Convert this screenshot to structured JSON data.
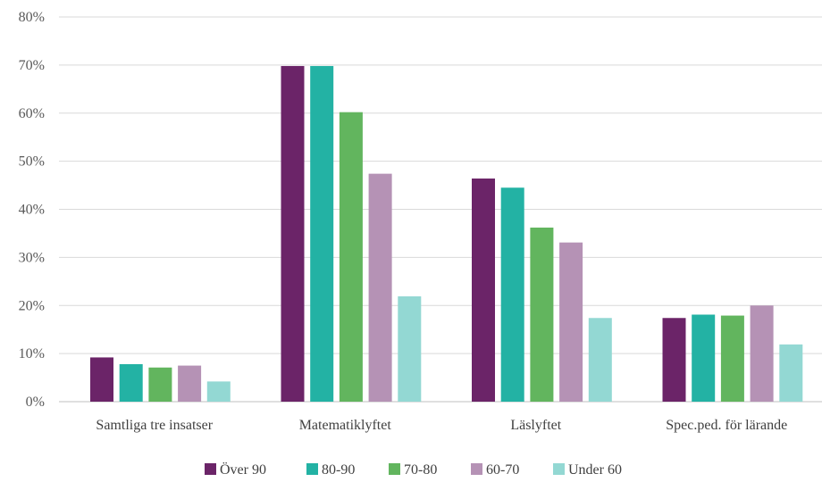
{
  "chart_data": {
    "type": "bar",
    "title": "",
    "xlabel": "",
    "ylabel": "",
    "ylim": [
      0,
      0.8
    ],
    "ytick_step": 0.1,
    "ytick_labels": [
      "0%",
      "10%",
      "20%",
      "30%",
      "40%",
      "50%",
      "60%",
      "70%",
      "80%"
    ],
    "grid": true,
    "legend_position": "bottom",
    "categories": [
      "Samtliga tre insatser",
      "Matematiklyftet",
      "Läslyftet",
      "Spec.ped. för lärande"
    ],
    "series": [
      {
        "name": "Över 90",
        "color": "#6b2468",
        "values": [
          0.092,
          0.698,
          0.464,
          0.174
        ]
      },
      {
        "name": "80-90",
        "color": "#23b2a4",
        "values": [
          0.078,
          0.698,
          0.445,
          0.181
        ]
      },
      {
        "name": "70-80",
        "color": "#62b55e",
        "values": [
          0.071,
          0.602,
          0.362,
          0.179
        ]
      },
      {
        "name": "60-70",
        "color": "#b592b5",
        "values": [
          0.075,
          0.474,
          0.331,
          0.2
        ]
      },
      {
        "name": "Under 60",
        "color": "#93d8d3",
        "values": [
          0.042,
          0.219,
          0.174,
          0.119
        ]
      }
    ]
  }
}
